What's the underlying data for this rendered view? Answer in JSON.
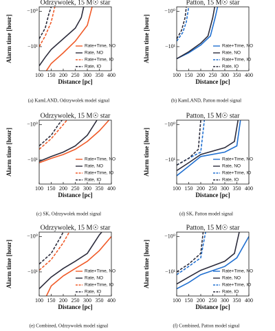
{
  "chart_data": [
    {
      "type": "line",
      "title": "Odrzywolek, 15 M☉ star",
      "x_label": "Distance [pc]",
      "y_label": "Alarm time [hour]",
      "caption": "(a) KamLAND, Odrzywolek model signal",
      "xlim": [
        100,
        400
      ],
      "xticks": [
        100,
        150,
        200,
        250,
        300,
        350,
        400
      ],
      "yscale": "log",
      "ylim": [
        -48,
        -0.75
      ],
      "yticks": [
        {
          "value": -1,
          "label": "−10⁰"
        },
        {
          "value": -10,
          "label": "−10¹"
        }
      ],
      "legend": "lower right",
      "series": [
        {
          "name": "Rate+Time, NO",
          "color": "#f05a28",
          "linestyle": "solid",
          "x": [
            130,
            150,
            200,
            250,
            300,
            320
          ],
          "values": [
            -48,
            -30,
            -15,
            -7,
            -2.5,
            -0.75
          ]
        },
        {
          "name": "Rate, NO",
          "color": "#2b2b3b",
          "linestyle": "solid",
          "x": [
            100,
            125,
            150,
            200,
            250,
            275,
            285
          ],
          "values": [
            -35,
            -20,
            -12,
            -6,
            -3,
            -1.5,
            -0.75
          ]
        },
        {
          "name": "Rate+Time, IO",
          "color": "#f05a28",
          "linestyle": "dashed",
          "x": [
            100,
            125,
            150,
            165
          ],
          "values": [
            -10,
            -5,
            -2,
            -0.75
          ]
        },
        {
          "name": "Rate, IO",
          "color": "#2b2b3b",
          "linestyle": "dashed",
          "x": [
            100,
            125,
            140,
            150
          ],
          "values": [
            -6,
            -3,
            -1.2,
            -0.75
          ]
        }
      ]
    },
    {
      "type": "line",
      "title": "Patton, 15 M☉ star",
      "x_label": "Distance [pc]",
      "y_label": "Alarm time [hour]",
      "caption": "(b) KamLAND, Patton model signal",
      "xlim": [
        100,
        400
      ],
      "xticks": [
        100,
        150,
        200,
        250,
        300,
        350,
        400
      ],
      "yscale": "log",
      "ylim": [
        -48,
        -0.75
      ],
      "yticks": [
        {
          "value": -1,
          "label": "−10⁰"
        },
        {
          "value": -10,
          "label": "−10¹"
        }
      ],
      "legend": "lower right",
      "series": [
        {
          "name": "Rate+Time, NO",
          "color": "#1f6fd0",
          "linestyle": "solid",
          "x": [
            100,
            150,
            200,
            240,
            260,
            270
          ],
          "values": [
            -22,
            -15,
            -9,
            -5,
            -1.5,
            -0.75
          ]
        },
        {
          "name": "Rate, NO",
          "color": "#2b2b3b",
          "linestyle": "solid",
          "x": [
            100,
            150,
            200,
            230,
            250,
            258
          ],
          "values": [
            -22,
            -14,
            -8,
            -5,
            -1.5,
            -0.75
          ]
        },
        {
          "name": "Rate+Time, IO",
          "color": "#1f6fd0",
          "linestyle": "dashed",
          "x": [
            100,
            125,
            140,
            150
          ],
          "values": [
            -7,
            -4,
            -2,
            -0.75
          ]
        },
        {
          "name": "Rate, IO",
          "color": "#2b2b3b",
          "linestyle": "dashed",
          "x": [
            100,
            120,
            135,
            140
          ],
          "values": [
            -6,
            -3.5,
            -1.5,
            -0.75
          ]
        }
      ]
    },
    {
      "type": "line",
      "title": "Odrzywolek, 15 M☉ star",
      "x_label": "Distance [pc]",
      "y_label": "Alarm time [hour]",
      "caption": "(c) SK, Odrzywolek model signal",
      "xlim": [
        100,
        400
      ],
      "xticks": [
        100,
        150,
        200,
        250,
        300,
        350,
        400
      ],
      "yscale": "log",
      "ylim": [
        -48,
        -0.75
      ],
      "yticks": [
        {
          "value": -1,
          "label": "−10⁰"
        },
        {
          "value": -10,
          "label": "−10¹"
        }
      ],
      "legend": "lower right",
      "series": [
        {
          "name": "Rate+Time, NO",
          "color": "#f05a28",
          "linestyle": "solid",
          "x": [
            100,
            150,
            200,
            250,
            300,
            350,
            390
          ],
          "values": [
            -12,
            -9,
            -7,
            -5,
            -3,
            -1.5,
            -0.75
          ]
        },
        {
          "name": "Rate, NO",
          "color": "#2b2b3b",
          "linestyle": "solid",
          "x": [
            100,
            150,
            200,
            250,
            300,
            340
          ],
          "values": [
            -11,
            -8,
            -6,
            -4,
            -2,
            -0.75
          ]
        },
        {
          "name": "Rate+Time, IO",
          "color": "#f05a28",
          "linestyle": "dashed",
          "x": [
            100,
            150,
            200,
            215
          ],
          "values": [
            -5,
            -2.5,
            -1,
            -0.75
          ]
        },
        {
          "name": "Rate, IO",
          "color": "#2b2b3b",
          "linestyle": "dashed",
          "x": [
            100,
            150,
            180,
            195
          ],
          "values": [
            -4,
            -2,
            -1,
            -0.75
          ]
        }
      ]
    },
    {
      "type": "line",
      "title": "Patton, 15 M☉ star",
      "x_label": "Distance [pc]",
      "y_label": "Alarm time [hour]",
      "caption": "(d) SK, Patton model signal",
      "xlim": [
        100,
        400
      ],
      "xticks": [
        100,
        150,
        200,
        250,
        300,
        350,
        400
      ],
      "yscale": "log",
      "ylim": [
        -48,
        -0.75
      ],
      "yticks": [
        {
          "value": -1,
          "label": "−10⁰"
        },
        {
          "value": -10,
          "label": "−10¹"
        }
      ],
      "legend": "lower right",
      "series": [
        {
          "name": "Rate+Time, NO",
          "color": "#1f6fd0",
          "linestyle": "solid",
          "x": [
            100,
            150,
            200,
            300,
            350,
            365
          ],
          "values": [
            -28,
            -15,
            -8,
            -6,
            -4,
            -0.75
          ]
        },
        {
          "name": "Rate, NO",
          "color": "#2b2b3b",
          "linestyle": "solid",
          "x": [
            100,
            150,
            200,
            300,
            340,
            355
          ],
          "values": [
            -20,
            -12,
            -7,
            -4.5,
            -3,
            -0.75
          ]
        },
        {
          "name": "Rate+Time, IO",
          "color": "#1f6fd0",
          "linestyle": "dashed",
          "x": [
            100,
            150,
            200,
            215
          ],
          "values": [
            -14,
            -9,
            -6,
            -0.75
          ]
        },
        {
          "name": "Rate, IO",
          "color": "#2b2b3b",
          "linestyle": "dashed",
          "x": [
            100,
            150,
            190,
            200
          ],
          "values": [
            -14,
            -9,
            -5,
            -0.75
          ]
        }
      ]
    },
    {
      "type": "line",
      "title": "Odrzywolek, 15 M☉ star",
      "x_label": "Distance [pc]",
      "y_label": "Alarm time [hour]",
      "caption": "(e) Combined, Odrzywolek model signal",
      "xlim": [
        100,
        400
      ],
      "xticks": [
        100,
        150,
        200,
        250,
        300,
        350,
        400
      ],
      "yscale": "log",
      "ylim": [
        -48,
        -0.75
      ],
      "yticks": [
        {
          "value": -1,
          "label": "−10⁰"
        },
        {
          "value": -10,
          "label": "−10¹"
        }
      ],
      "legend": "lower right",
      "series": [
        {
          "name": "Rate+Time, NO",
          "color": "#f05a28",
          "linestyle": "solid",
          "x": [
            130,
            150,
            200,
            250,
            300,
            350,
            400
          ],
          "values": [
            -48,
            -25,
            -13,
            -8,
            -5,
            -2.5,
            -1
          ]
        },
        {
          "name": "Rate, NO",
          "color": "#2b2b3b",
          "linestyle": "solid",
          "x": [
            100,
            150,
            200,
            250,
            300,
            350,
            360
          ],
          "values": [
            -30,
            -14,
            -8,
            -5,
            -3,
            -0.9,
            -0.75
          ]
        },
        {
          "name": "Rate+Time, IO",
          "color": "#f05a28",
          "linestyle": "dashed",
          "x": [
            100,
            150,
            200,
            225
          ],
          "values": [
            -9,
            -4.5,
            -1.5,
            -0.75
          ]
        },
        {
          "name": "Rate, IO",
          "color": "#2b2b3b",
          "linestyle": "dashed",
          "x": [
            100,
            150,
            190,
            200
          ],
          "values": [
            -6,
            -3,
            -1,
            -0.75
          ]
        }
      ]
    },
    {
      "type": "line",
      "title": "Patton, 15 M☉ star",
      "x_label": "Distance [pc]",
      "y_label": "Alarm time [hour]",
      "caption": "(f) Combined, Patton model signal",
      "xlim": [
        100,
        400
      ],
      "xticks": [
        100,
        150,
        200,
        250,
        300,
        350,
        400
      ],
      "yscale": "log",
      "ylim": [
        -48,
        -0.75
      ],
      "yticks": [
        {
          "value": -1,
          "label": "−10⁰"
        },
        {
          "value": -10,
          "label": "−10¹"
        }
      ],
      "legend": "lower right",
      "series": [
        {
          "name": "Rate+Time, NO",
          "color": "#1f6fd0",
          "linestyle": "solid",
          "x": [
            100,
            150,
            200,
            300,
            350,
            400
          ],
          "values": [
            -30,
            -20,
            -12,
            -7,
            -4,
            -1
          ]
        },
        {
          "name": "Rate, NO",
          "color": "#2b2b3b",
          "linestyle": "solid",
          "x": [
            100,
            150,
            200,
            300,
            340,
            360
          ],
          "values": [
            -22,
            -14,
            -9,
            -5,
            -3,
            -0.75
          ]
        },
        {
          "name": "Rate+Time, IO",
          "color": "#1f6fd0",
          "linestyle": "dashed",
          "x": [
            100,
            150,
            200,
            220
          ],
          "values": [
            -12,
            -7,
            -4,
            -0.75
          ]
        },
        {
          "name": "Rate, IO",
          "color": "#2b2b3b",
          "linestyle": "dashed",
          "x": [
            100,
            150,
            200,
            210
          ],
          "values": [
            -10,
            -6,
            -3,
            -0.75
          ]
        }
      ]
    }
  ]
}
